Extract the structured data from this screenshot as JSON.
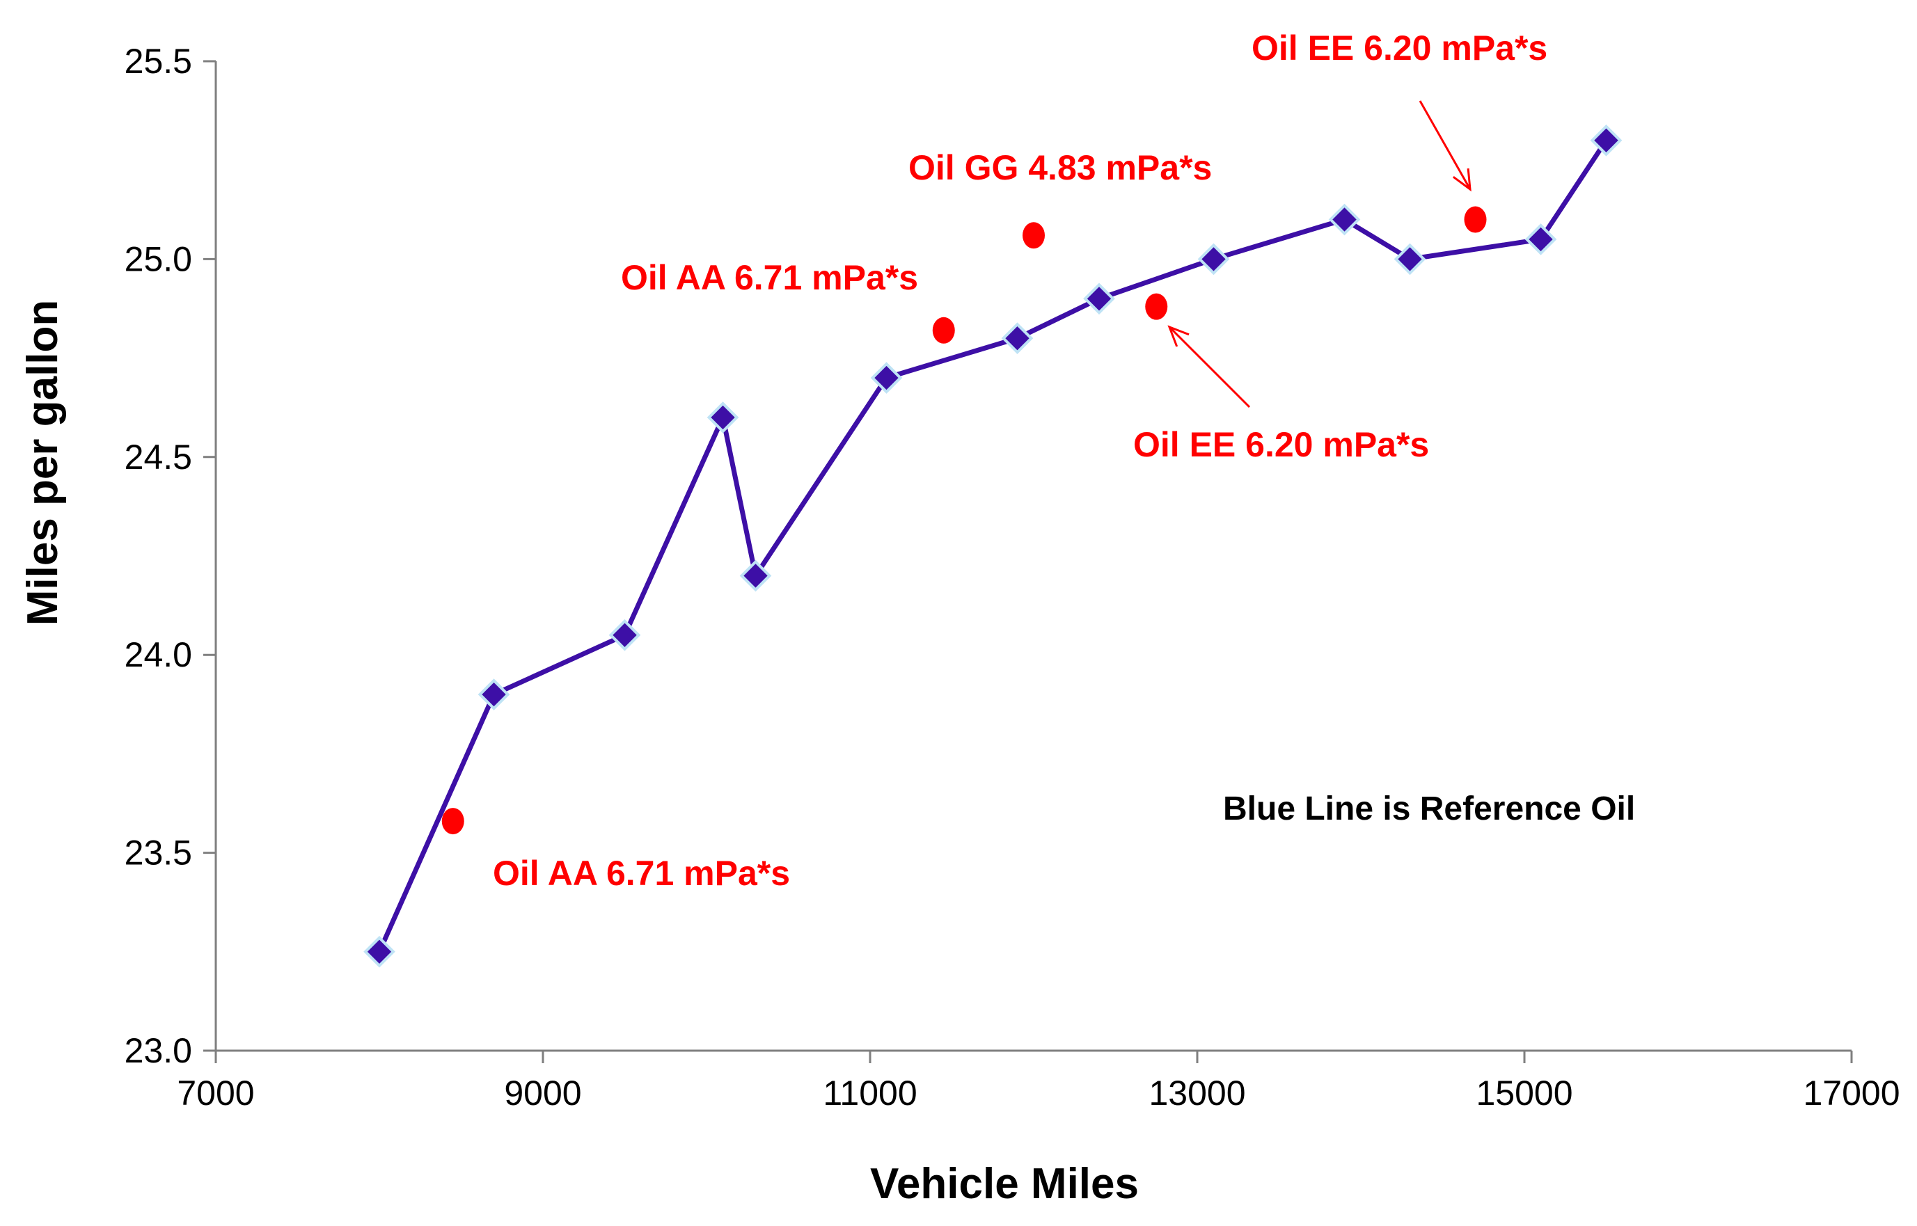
{
  "chart_data": {
    "type": "line",
    "title": "",
    "xlabel": "Vehicle Miles",
    "ylabel": "Miles per gallon",
    "xlim": [
      7000,
      17000
    ],
    "ylim": [
      23.0,
      25.5
    ],
    "xticks": [
      "7000",
      "9000",
      "11000",
      "13000",
      "15000",
      "17000"
    ],
    "xtick_values": [
      7000,
      9000,
      11000,
      13000,
      15000,
      17000
    ],
    "yticks": [
      "23.0",
      "23.5",
      "24.0",
      "24.5",
      "25.0",
      "25.5"
    ],
    "ytick_values": [
      23.0,
      23.5,
      24.0,
      24.5,
      25.0,
      25.5
    ],
    "grid": false,
    "series": [
      {
        "name": "Reference Oil",
        "kind": "line-diamond",
        "color": "#3d0fa6",
        "x": [
          8000,
          8700,
          9500,
          10100,
          10300,
          11100,
          11900,
          12400,
          13100,
          13900,
          14300,
          15100,
          15500
        ],
        "y": [
          23.25,
          23.9,
          24.05,
          24.6,
          24.2,
          24.7,
          24.8,
          24.9,
          25.0,
          25.1,
          25.0,
          25.05,
          25.3
        ]
      },
      {
        "name": "Candidate Oils",
        "kind": "points",
        "color": "#ff0000",
        "x": [
          8450,
          11450,
          12000,
          12750,
          14700
        ],
        "y": [
          23.58,
          24.82,
          25.06,
          24.88,
          25.1
        ]
      }
    ],
    "annotations": [
      {
        "text": "Oil AA 6.71 mPa*s",
        "color": "#ff0000"
      },
      {
        "text": "Oil AA 6.71 mPa*s",
        "color": "#ff0000"
      },
      {
        "text": "Oil GG 4.83 mPa*s",
        "color": "#ff0000"
      },
      {
        "text": "Oil EE 6.20 mPa*s",
        "color": "#ff0000"
      },
      {
        "text": "Oil EE 6.20 mPa*s",
        "color": "#ff0000"
      }
    ],
    "note": {
      "text": "Blue Line is Reference Oil",
      "color": "#3d0fa6"
    }
  }
}
